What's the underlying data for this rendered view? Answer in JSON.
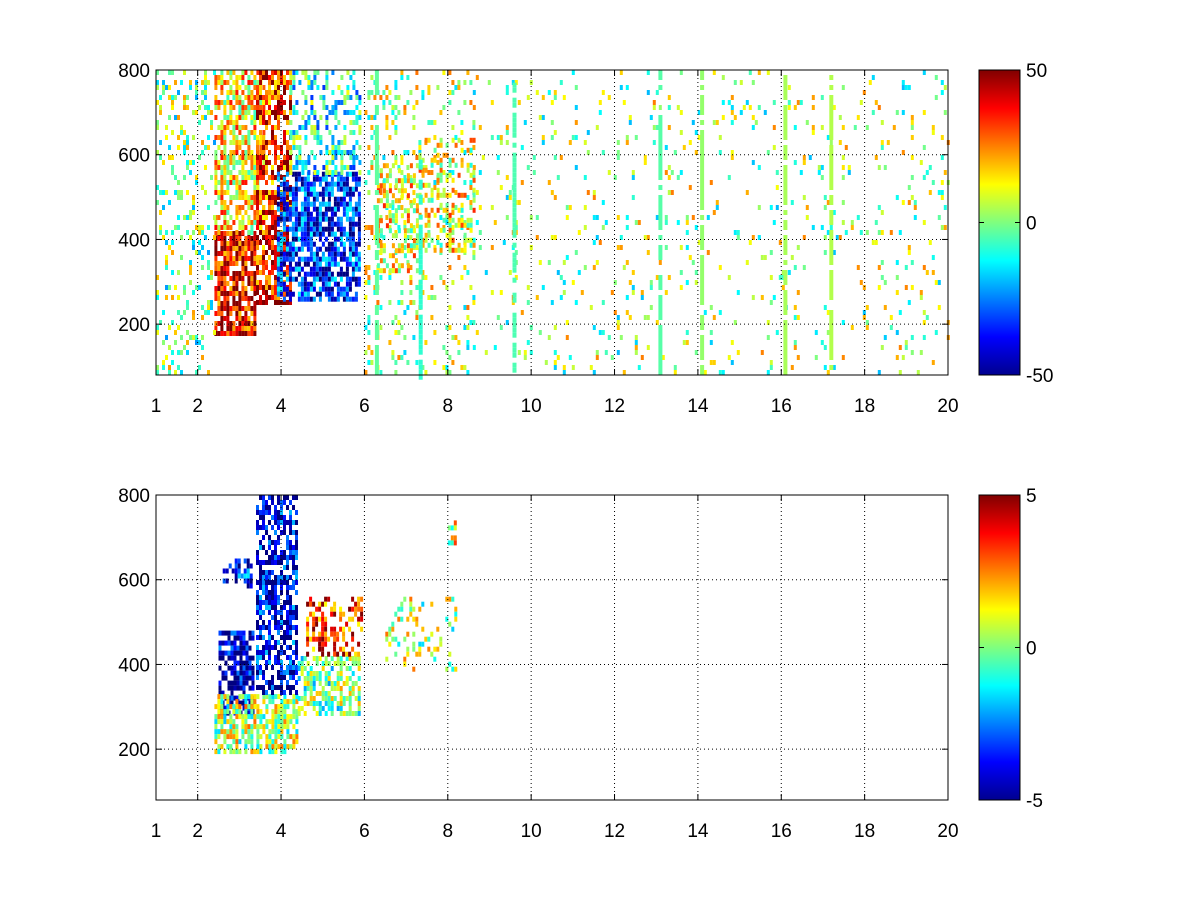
{
  "chart_data": [
    {
      "type": "heatmap",
      "title": "",
      "xlabel": "",
      "ylabel": "",
      "xlim": [
        1,
        20
      ],
      "ylim": [
        80,
        800
      ],
      "grid": true,
      "x_ticks": [
        1,
        2,
        4,
        6,
        8,
        10,
        12,
        14,
        16,
        18,
        20
      ],
      "x_tick_labels": [
        "1",
        "2",
        "4",
        "6",
        "8",
        "10",
        "12",
        "14",
        "16",
        "18",
        "20"
      ],
      "y_ticks": [
        200,
        400,
        600,
        800
      ],
      "y_tick_labels": [
        "200",
        "400",
        "600",
        "800"
      ],
      "colorbar": {
        "colormap": "jet",
        "range": [
          -50,
          50
        ],
        "ticks": [
          50,
          0,
          -50
        ],
        "tick_labels": [
          "50",
          "0",
          "-50"
        ]
      },
      "regions": [
        {
          "x": [
            2.4,
            3.4
          ],
          "y": [
            180,
            420
          ],
          "value": 40,
          "density": 0.8
        },
        {
          "x": [
            2.4,
            3.6
          ],
          "y": [
            420,
            800
          ],
          "value": 15,
          "density": 0.65
        },
        {
          "x": [
            3.4,
            4.2
          ],
          "y": [
            250,
            800
          ],
          "value": 35,
          "density": 0.7
        },
        {
          "x": [
            3.9,
            5.9
          ],
          "y": [
            260,
            560
          ],
          "value": -35,
          "density": 0.75
        },
        {
          "x": [
            4.2,
            5.9
          ],
          "y": [
            560,
            800
          ],
          "value": -10,
          "density": 0.35
        },
        {
          "x": [
            1.0,
            2.4
          ],
          "y": [
            80,
            800
          ],
          "value": 0,
          "density": 0.2
        },
        {
          "x": [
            6.0,
            8.6
          ],
          "y": [
            80,
            800
          ],
          "value": 5,
          "density": 0.15
        },
        {
          "x": [
            6.3,
            7.3
          ],
          "y": [
            330,
            580
          ],
          "value": 12,
          "density": 0.4
        },
        {
          "x": [
            7.3,
            8.6
          ],
          "y": [
            380,
            640
          ],
          "value": 12,
          "density": 0.35
        },
        {
          "x": [
            8.6,
            20.0
          ],
          "y": [
            80,
            800
          ],
          "value": 3,
          "density": 0.06
        }
      ],
      "vertical_streaks": [
        {
          "x": 9.6,
          "y": [
            80,
            770
          ],
          "value": -5
        },
        {
          "x": 7.35,
          "y": [
            80,
            600
          ],
          "value": -8
        },
        {
          "x": 6.3,
          "y": [
            80,
            800
          ],
          "value": -3
        },
        {
          "x": 13.1,
          "y": [
            80,
            800
          ],
          "value": -4
        },
        {
          "x": 14.1,
          "y": [
            80,
            800
          ],
          "value": 2
        },
        {
          "x": 16.1,
          "y": [
            80,
            800
          ],
          "value": 4
        },
        {
          "x": 17.2,
          "y": [
            80,
            800
          ],
          "value": 5
        }
      ]
    },
    {
      "type": "heatmap",
      "title": "",
      "xlabel": "",
      "ylabel": "",
      "xlim": [
        1,
        20
      ],
      "ylim": [
        80,
        800
      ],
      "grid": true,
      "x_ticks": [
        1,
        2,
        4,
        6,
        8,
        10,
        12,
        14,
        16,
        18,
        20
      ],
      "x_tick_labels": [
        "1",
        "2",
        "4",
        "6",
        "8",
        "10",
        "12",
        "14",
        "16",
        "18",
        "20"
      ],
      "y_ticks": [
        200,
        400,
        600,
        800
      ],
      "y_tick_labels": [
        "200",
        "400",
        "600",
        "800"
      ],
      "colorbar": {
        "colormap": "jet",
        "range": [
          -5,
          5
        ],
        "ticks": [
          5,
          0,
          -5
        ],
        "tick_labels": [
          "5",
          "0",
          "-5"
        ]
      },
      "regions": [
        {
          "x": [
            2.5,
            3.3
          ],
          "y": [
            280,
            480
          ],
          "value": -4.5,
          "density": 0.7
        },
        {
          "x": [
            2.6,
            3.3
          ],
          "y": [
            580,
            650
          ],
          "value": -3.5,
          "density": 0.5
        },
        {
          "x": [
            2.4,
            4.4
          ],
          "y": [
            190,
            330
          ],
          "value": 0.5,
          "density": 0.7
        },
        {
          "x": [
            3.4,
            4.4
          ],
          "y": [
            330,
            800
          ],
          "value": -4,
          "density": 0.65
        },
        {
          "x": [
            4.4,
            5.9
          ],
          "y": [
            290,
            420
          ],
          "value": 0,
          "density": 0.6
        },
        {
          "x": [
            4.6,
            5.9
          ],
          "y": [
            420,
            560
          ],
          "value": 3.5,
          "density": 0.5
        },
        {
          "x": [
            6.5,
            8.2
          ],
          "y": [
            390,
            560
          ],
          "value": 0.5,
          "density": 0.2
        },
        {
          "x": [
            8.0,
            8.2
          ],
          "y": [
            690,
            740
          ],
          "value": 1,
          "density": 0.5
        }
      ],
      "vertical_streaks": []
    }
  ]
}
